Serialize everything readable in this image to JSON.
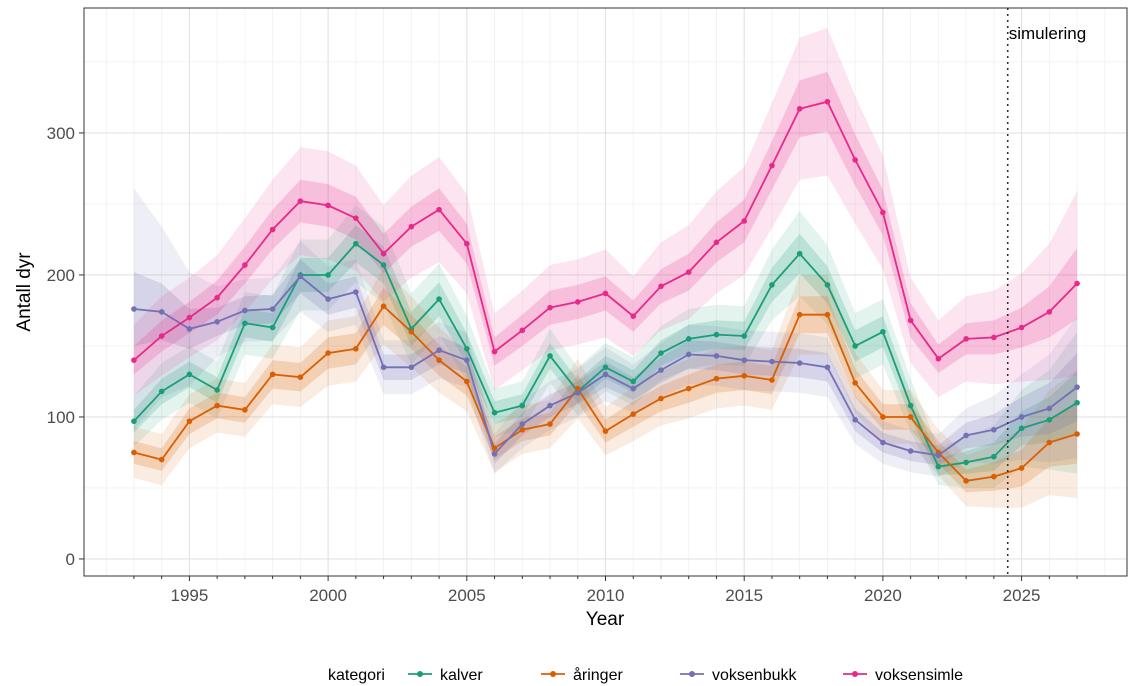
{
  "chart_data": {
    "type": "line",
    "title": "",
    "xlabel": "Year",
    "ylabel": "Antall dyr",
    "xlim": [
      1991.2,
      2028.8
    ],
    "ylim": [
      -12,
      388
    ],
    "x_ticks": [
      1995,
      2000,
      2005,
      2010,
      2015,
      2020,
      2025
    ],
    "y_ticks": [
      0,
      100,
      200,
      300
    ],
    "grid": true,
    "legend_title": "kategori",
    "legend_position": "bottom",
    "annotation": {
      "text": "simulering",
      "x": 2024.5
    },
    "x": [
      1993,
      1994,
      1995,
      1996,
      1997,
      1998,
      1999,
      2000,
      2001,
      2002,
      2003,
      2004,
      2005,
      2006,
      2007,
      2008,
      2009,
      2010,
      2011,
      2012,
      2013,
      2014,
      2015,
      2016,
      2017,
      2018,
      2019,
      2020,
      2021,
      2022,
      2023,
      2024,
      2025,
      2026,
      2027
    ],
    "series": [
      {
        "name": "kalver",
        "color": "#1b9e77",
        "values": [
          97,
          118,
          130,
          119,
          166,
          163,
          200,
          200,
          222,
          207,
          162,
          183,
          148,
          103,
          108,
          143,
          118,
          135,
          125,
          145,
          155,
          158,
          157,
          193,
          215,
          193,
          150,
          160,
          108,
          65,
          68,
          72,
          92,
          98,
          110
        ],
        "band_inner": [
          8,
          9,
          9,
          9,
          10,
          10,
          12,
          12,
          13,
          13,
          12,
          12,
          11,
          8,
          8,
          9,
          8,
          8,
          8,
          9,
          10,
          10,
          10,
          12,
          14,
          13,
          11,
          11,
          9,
          6,
          8,
          10,
          12,
          16,
          22
        ],
        "band_outer": [
          18,
          20,
          20,
          20,
          22,
          22,
          25,
          25,
          27,
          27,
          25,
          25,
          23,
          17,
          17,
          19,
          17,
          17,
          17,
          19,
          21,
          21,
          21,
          25,
          30,
          28,
          23,
          23,
          19,
          13,
          18,
          22,
          27,
          35,
          50
        ]
      },
      {
        "name": "åringer",
        "color": "#d95f02",
        "values": [
          75,
          70,
          97,
          108,
          105,
          130,
          128,
          145,
          148,
          178,
          160,
          140,
          125,
          78,
          91,
          95,
          120,
          90,
          102,
          113,
          120,
          127,
          129,
          126,
          172,
          172,
          124,
          100,
          100,
          75,
          55,
          58,
          64,
          82,
          88
        ],
        "band_inner": [
          8,
          8,
          9,
          9,
          9,
          10,
          10,
          11,
          11,
          13,
          12,
          11,
          10,
          8,
          8,
          8,
          10,
          8,
          9,
          9,
          10,
          10,
          10,
          10,
          13,
          13,
          10,
          9,
          9,
          8,
          8,
          10,
          13,
          17,
          21
        ],
        "band_outer": [
          18,
          18,
          19,
          19,
          19,
          21,
          21,
          23,
          23,
          27,
          25,
          23,
          21,
          17,
          17,
          17,
          21,
          17,
          19,
          19,
          21,
          21,
          21,
          21,
          28,
          28,
          21,
          19,
          19,
          16,
          18,
          22,
          28,
          37,
          45
        ]
      },
      {
        "name": "voksenbukk",
        "color": "#7570b3",
        "values": [
          176,
          174,
          162,
          167,
          175,
          176,
          199,
          183,
          188,
          135,
          135,
          147,
          140,
          74,
          95,
          108,
          117,
          130,
          120,
          133,
          144,
          143,
          140,
          139,
          138,
          135,
          98,
          82,
          76,
          73,
          87,
          91,
          100,
          106,
          121
        ],
        "band_inner": [
          26,
          20,
          14,
          10,
          10,
          10,
          12,
          11,
          11,
          9,
          9,
          10,
          9,
          7,
          8,
          8,
          8,
          9,
          8,
          9,
          10,
          10,
          10,
          10,
          10,
          10,
          8,
          7,
          7,
          7,
          9,
          11,
          14,
          18,
          24
        ],
        "band_outer": [
          85,
          60,
          40,
          25,
          22,
          22,
          25,
          23,
          23,
          19,
          19,
          20,
          19,
          14,
          17,
          17,
          17,
          19,
          17,
          19,
          21,
          21,
          21,
          21,
          21,
          21,
          17,
          15,
          15,
          15,
          19,
          24,
          30,
          38,
          50
        ]
      },
      {
        "name": "voksensimle",
        "color": "#e7298a",
        "values": [
          140,
          157,
          170,
          184,
          207,
          232,
          252,
          249,
          240,
          215,
          234,
          246,
          222,
          146,
          161,
          177,
          181,
          187,
          171,
          192,
          202,
          223,
          238,
          277,
          317,
          322,
          281,
          244,
          168,
          141,
          155,
          156,
          163,
          174,
          194
        ],
        "band_inner": [
          10,
          11,
          11,
          12,
          13,
          14,
          15,
          15,
          15,
          14,
          14,
          15,
          14,
          10,
          11,
          12,
          12,
          12,
          11,
          12,
          13,
          14,
          15,
          17,
          20,
          21,
          18,
          16,
          12,
          10,
          11,
          12,
          14,
          18,
          25
        ],
        "band_outer": [
          25,
          28,
          28,
          30,
          33,
          35,
          38,
          38,
          37,
          34,
          36,
          37,
          35,
          27,
          28,
          30,
          30,
          31,
          28,
          31,
          33,
          36,
          38,
          44,
          50,
          52,
          45,
          40,
          30,
          27,
          30,
          33,
          38,
          48,
          65
        ]
      }
    ]
  }
}
